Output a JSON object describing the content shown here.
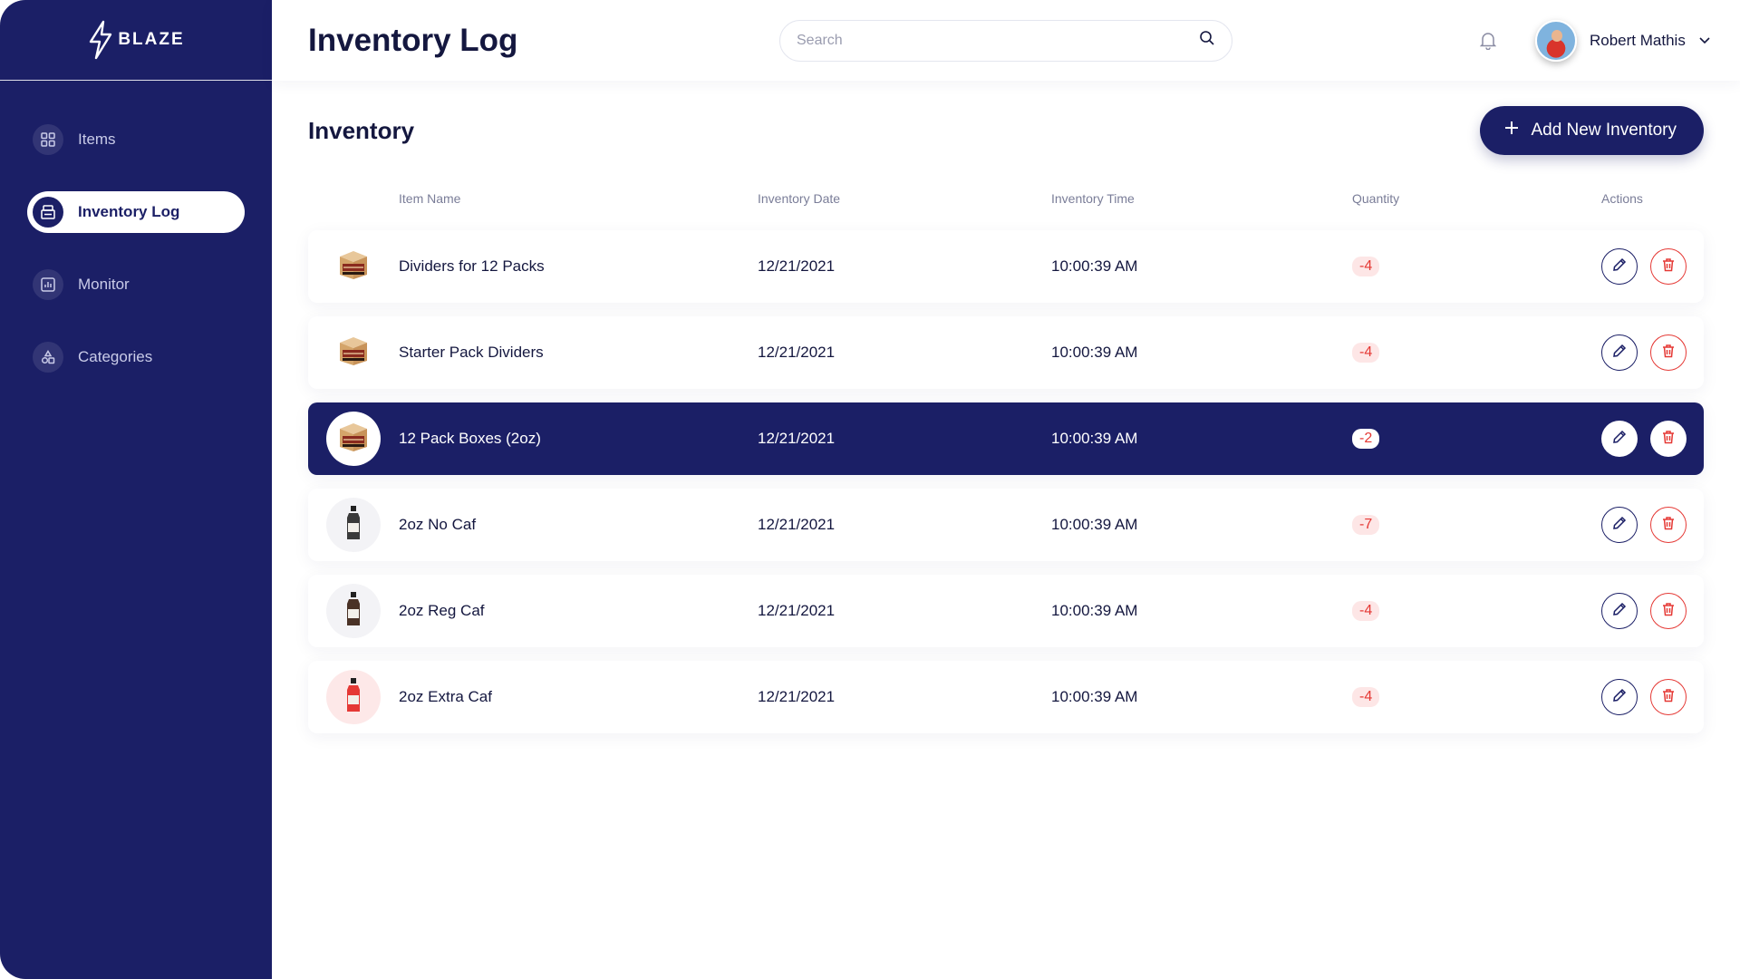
{
  "brand": {
    "name": "BLAZE"
  },
  "sidebar": {
    "items": [
      {
        "label": "Items",
        "icon": "grid-icon",
        "active": false
      },
      {
        "label": "Inventory Log",
        "icon": "log-icon",
        "active": true
      },
      {
        "label": "Monitor",
        "icon": "chart-icon",
        "active": false
      },
      {
        "label": "Categories",
        "icon": "shapes-icon",
        "active": false
      }
    ]
  },
  "header": {
    "title": "Inventory Log",
    "search_placeholder": "Search",
    "user_name": "Robert Mathis"
  },
  "main": {
    "section_title": "Inventory",
    "add_button_label": "Add New Inventory",
    "columns": {
      "item_name": "Item Name",
      "date": "Inventory Date",
      "time": "Inventory Time",
      "quantity": "Quantity",
      "actions": "Actions"
    },
    "rows": [
      {
        "name": "Dividers for 12 Packs",
        "date": "12/21/2021",
        "time": "10:00:39 AM",
        "quantity": "-4",
        "thumb": "box-icon"
      },
      {
        "name": "Starter Pack Dividers",
        "date": "12/21/2021",
        "time": "10:00:39 AM",
        "quantity": "-4",
        "thumb": "box-icon"
      },
      {
        "name": "12 Pack Boxes (2oz)",
        "date": "12/21/2021",
        "time": "10:00:39 AM",
        "quantity": "-2",
        "thumb": "box-icon"
      },
      {
        "name": "2oz No Caf",
        "date": "12/21/2021",
        "time": "10:00:39 AM",
        "quantity": "-7",
        "thumb": "bottle-icon"
      },
      {
        "name": "2oz Reg Caf",
        "date": "12/21/2021",
        "time": "10:00:39 AM",
        "quantity": "-4",
        "thumb": "bottle-icon"
      },
      {
        "name": "2oz Extra Caf",
        "date": "12/21/2021",
        "time": "10:00:39 AM",
        "quantity": "-4",
        "thumb": "bottle-icon"
      }
    ]
  },
  "colors": {
    "primary": "#1b1f66",
    "danger": "#e53935",
    "danger_bg": "#fde6e6"
  }
}
